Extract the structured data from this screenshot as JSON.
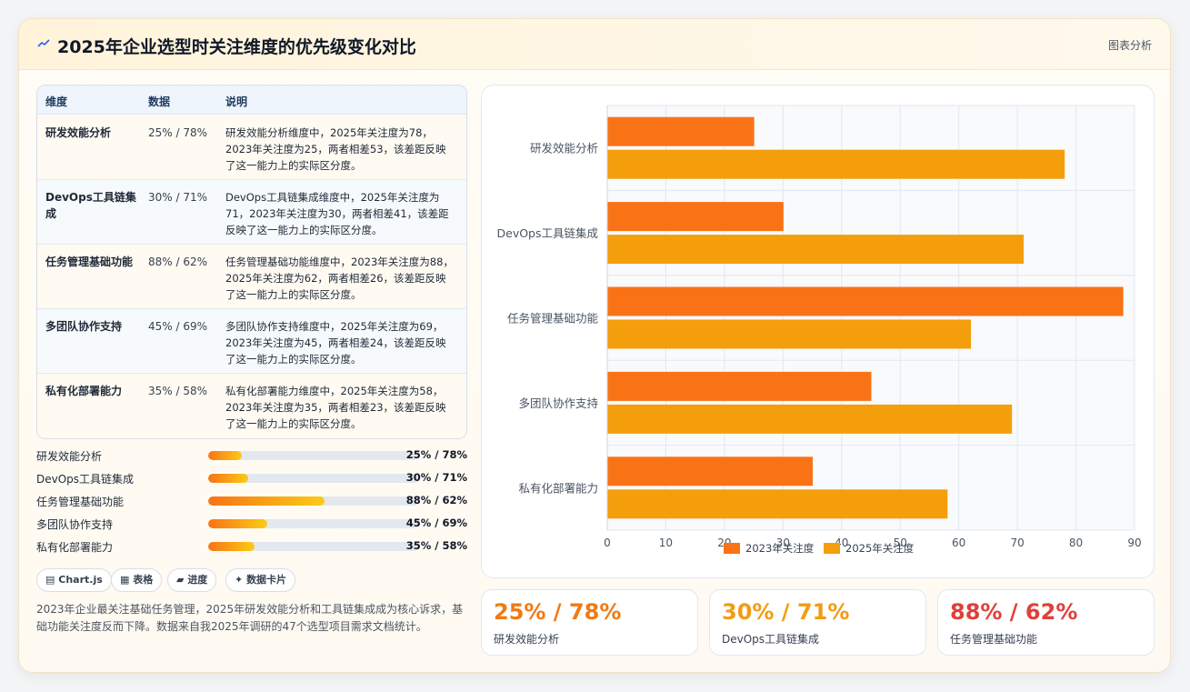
{
  "header": {
    "title": "2025年企业选型时关注维度的优先级变化对比",
    "tag": "图表分析"
  },
  "table": {
    "headers": [
      "维度",
      "数据",
      "说明"
    ],
    "rows": [
      {
        "name": "研发效能分析",
        "value": "25% / 78%",
        "desc": "研发效能分析维度中，2025年关注度为78，2023年关注度为25，两者相差53，该差距反映了这一能力上的实际区分度。"
      },
      {
        "name": "DevOps工具链集成",
        "value": "30% / 71%",
        "desc": "DevOps工具链集成维度中，2025年关注度为71，2023年关注度为30，两者相差41，该差距反映了这一能力上的实际区分度。"
      },
      {
        "name": "任务管理基础功能",
        "value": "88% / 62%",
        "desc": "任务管理基础功能维度中，2023年关注度为88，2025年关注度为62，两者相差26，该差距反映了这一能力上的实际区分度。"
      },
      {
        "name": "多团队协作支持",
        "value": "45% / 69%",
        "desc": "多团队协作支持维度中，2025年关注度为69，2023年关注度为45，两者相差24，该差距反映了这一能力上的实际区分度。"
      },
      {
        "name": "私有化部署能力",
        "value": "35% / 58%",
        "desc": "私有化部署能力维度中，2025年关注度为58，2023年关注度为35，两者相差23，该差距反映了这一能力上的实际区分度。"
      }
    ]
  },
  "progress": [
    {
      "label": "研发效能分析",
      "value": "25% / 78%",
      "fill": 0.16
    },
    {
      "label": "DevOps工具链集成",
      "value": "30% / 71%",
      "fill": 0.19
    },
    {
      "label": "任务管理基础功能",
      "value": "88% / 62%",
      "fill": 0.55
    },
    {
      "label": "多团队协作支持",
      "value": "45% / 69%",
      "fill": 0.28
    },
    {
      "label": "私有化部署能力",
      "value": "35% / 58%",
      "fill": 0.22
    }
  ],
  "chips": [
    {
      "icon": "▤",
      "label": "Chart.js"
    },
    {
      "icon": "▦",
      "label": "表格"
    },
    {
      "icon": "▰",
      "label": "进度"
    },
    {
      "icon": "✦",
      "label": "数据卡片"
    }
  ],
  "note": "2023年企业最关注基础任务管理，2025年研发效能分析和工具链集成成为核心诉求，基础功能关注度反而下降。数据来自我2025年调研的47个选型项目需求文档统计。",
  "stats": [
    {
      "value": "25% / 78%",
      "label": "研发效能分析",
      "color": "#f07a13"
    },
    {
      "value": "30% / 71%",
      "label": "DevOps工具链集成",
      "color": "#f39c12"
    },
    {
      "value": "88% / 62%",
      "label": "任务管理基础功能",
      "color": "#e0403a"
    }
  ],
  "chart_data": {
    "type": "bar",
    "orientation": "horizontal",
    "categories": [
      "研发效能分析",
      "DevOps工具链集成",
      "任务管理基础功能",
      "多团队协作支持",
      "私有化部署能力"
    ],
    "series": [
      {
        "name": "2023年关注度",
        "values": [
          25,
          30,
          88,
          45,
          35
        ],
        "color": "#f97316"
      },
      {
        "name": "2025年关注度",
        "values": [
          78,
          71,
          62,
          69,
          58
        ],
        "color": "#f59e0b"
      }
    ],
    "xlim": [
      0,
      90
    ],
    "xticks": [
      0,
      10,
      20,
      30,
      40,
      50,
      60,
      70,
      80,
      90
    ],
    "grid": true,
    "legend": "bottom"
  }
}
